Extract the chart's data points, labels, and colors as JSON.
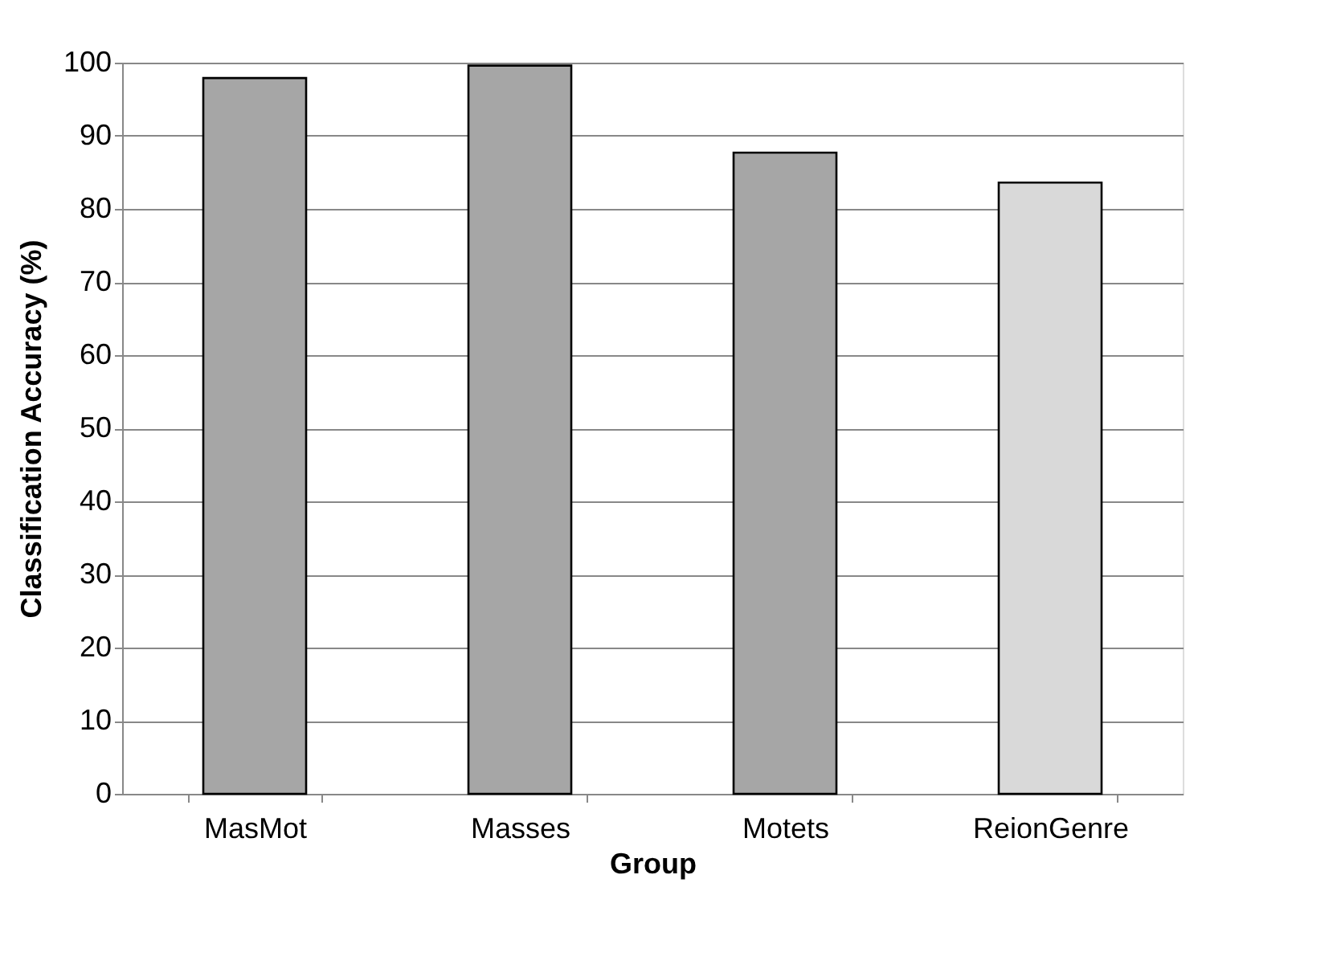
{
  "chart_data": {
    "type": "bar",
    "categories": [
      "MasMot",
      "Masses",
      "Motets",
      "ReionGenre"
    ],
    "values": [
      97.9,
      99.6,
      87.7,
      83.6
    ],
    "colors": [
      "#a6a6a6",
      "#a6a6a6",
      "#a6a6a6",
      "#d9d9d9"
    ],
    "xlabel": "Group",
    "ylabel": "Classification Accuracy (%)",
    "ylim": [
      0,
      100
    ],
    "yticks": [
      0,
      10,
      20,
      30,
      40,
      50,
      60,
      70,
      80,
      90,
      100
    ],
    "grid": "y"
  }
}
